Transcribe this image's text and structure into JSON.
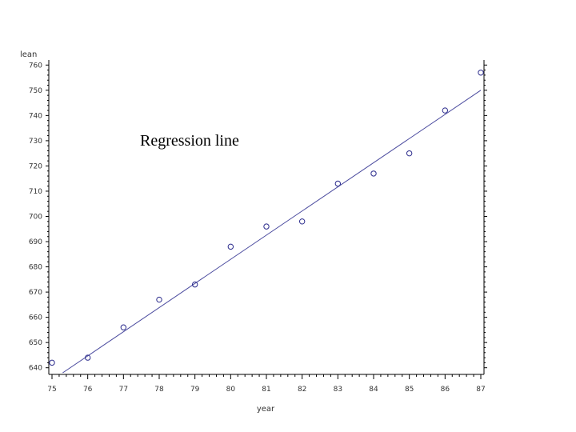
{
  "chart_data": {
    "type": "scatter",
    "title": "",
    "xlabel": "year",
    "ylabel": "lean",
    "x_tick_labels": [
      "75",
      "76",
      "77",
      "78",
      "79",
      "80",
      "81",
      "82",
      "83",
      "84",
      "85",
      "86",
      "87"
    ],
    "y_tick_labels": [
      "640",
      "650",
      "660",
      "670",
      "680",
      "690",
      "700",
      "710",
      "720",
      "730",
      "740",
      "750",
      "760"
    ],
    "xlim": [
      75,
      87
    ],
    "ylim": [
      638,
      762
    ],
    "series": [
      {
        "points": [
          {
            "x": 75,
            "y": 642
          },
          {
            "x": 76,
            "y": 644
          },
          {
            "x": 77,
            "y": 656
          },
          {
            "x": 78,
            "y": 667
          },
          {
            "x": 79,
            "y": 673
          },
          {
            "x": 80,
            "y": 688
          },
          {
            "x": 81,
            "y": 696
          },
          {
            "x": 82,
            "y": 698
          },
          {
            "x": 83,
            "y": 713
          },
          {
            "x": 84,
            "y": 717
          },
          {
            "x": 85,
            "y": 725
          },
          {
            "x": 86,
            "y": 742
          },
          {
            "x": 87,
            "y": 757
          }
        ]
      }
    ],
    "regression_line": {
      "x": [
        75.3,
        87
      ],
      "y": [
        638,
        750
      ]
    },
    "annotation": "Regression line",
    "grid": false,
    "colors": {
      "points": "#2b2b8c",
      "line": "#4a4a9e",
      "axis": "#000000"
    }
  }
}
